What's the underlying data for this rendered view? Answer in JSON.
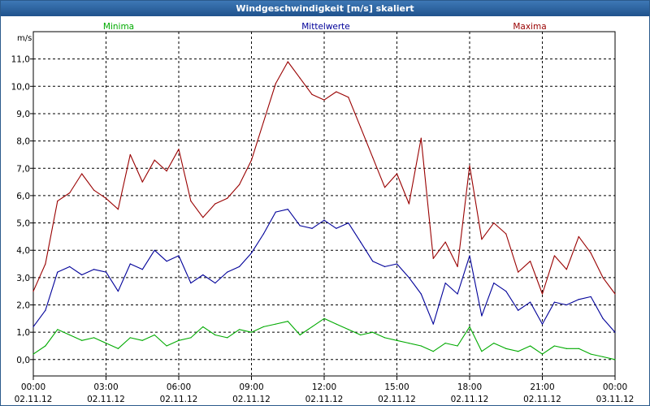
{
  "window": {
    "title": "Windgeschwindigkeit [m/s] skaliert"
  },
  "colors": {
    "min": "#00aa00",
    "mean": "#000099",
    "max": "#990000",
    "grid": "#000000"
  },
  "chart_data": {
    "type": "line",
    "title": "Windgeschwindigkeit [m/s] skaliert",
    "ylabel": "m/s",
    "xlabel": "",
    "ylim": [
      -0.6,
      12.0
    ],
    "xlim": [
      0,
      24
    ],
    "grid": true,
    "legend": [
      "Minima",
      "Mittelwerte",
      "Maxima"
    ],
    "yticks": [
      0,
      1,
      2,
      3,
      4,
      5,
      6,
      7,
      8,
      9,
      10,
      11
    ],
    "ytick_labels": [
      "0,0",
      "1,0",
      "2,0",
      "3,0",
      "4,0",
      "5,0",
      "6,0",
      "7,0",
      "8,0",
      "9,0",
      "10,0",
      "11,0"
    ],
    "xticks": [
      0,
      3,
      6,
      9,
      12,
      15,
      18,
      21,
      24
    ],
    "xtick_times": [
      "00:00",
      "03:00",
      "06:00",
      "09:00",
      "12:00",
      "15:00",
      "18:00",
      "21:00",
      "00:00"
    ],
    "xtick_dates": [
      "02.11.12",
      "02.11.12",
      "02.11.12",
      "02.11.12",
      "02.11.12",
      "02.11.12",
      "02.11.12",
      "02.11.12",
      "03.11.12"
    ],
    "x": [
      0.0,
      0.5,
      1.0,
      1.5,
      2.0,
      2.5,
      3.0,
      3.5,
      4.0,
      4.5,
      5.0,
      5.5,
      6.0,
      6.5,
      7.0,
      7.5,
      8.0,
      8.5,
      9.0,
      9.5,
      10.0,
      10.5,
      11.0,
      11.5,
      12.0,
      12.5,
      13.0,
      13.5,
      14.0,
      14.5,
      15.0,
      15.5,
      16.0,
      16.5,
      17.0,
      17.5,
      18.0,
      18.5,
      19.0,
      19.5,
      20.0,
      20.5,
      21.0,
      21.5,
      22.0,
      22.5,
      23.0,
      23.5,
      24.0
    ],
    "series": [
      {
        "name": "Maxima",
        "color": "#990000",
        "values": [
          2.5,
          3.5,
          5.8,
          6.1,
          6.8,
          6.2,
          5.9,
          5.5,
          7.5,
          6.5,
          7.3,
          6.9,
          7.7,
          5.8,
          5.2,
          5.7,
          5.9,
          6.4,
          7.3,
          8.7,
          10.1,
          10.9,
          10.3,
          9.7,
          9.5,
          9.8,
          9.6,
          8.5,
          7.4,
          6.3,
          6.8,
          5.7,
          8.1,
          3.7,
          4.3,
          3.4,
          7.1,
          4.4,
          5.0,
          4.6,
          3.2,
          3.6,
          2.4,
          3.8,
          3.3,
          4.5,
          3.9,
          3.0,
          2.4
        ]
      },
      {
        "name": "Mittelwerte",
        "color": "#000099",
        "values": [
          1.2,
          1.8,
          3.2,
          3.4,
          3.1,
          3.3,
          3.2,
          2.5,
          3.5,
          3.3,
          4.0,
          3.6,
          3.8,
          2.8,
          3.1,
          2.8,
          3.2,
          3.4,
          3.9,
          4.6,
          5.4,
          5.5,
          4.9,
          4.8,
          5.1,
          4.8,
          5.0,
          4.3,
          3.6,
          3.4,
          3.5,
          3.0,
          2.4,
          1.3,
          2.8,
          2.4,
          3.8,
          1.6,
          2.8,
          2.5,
          1.8,
          2.1,
          1.3,
          2.1,
          2.0,
          2.2,
          2.3,
          1.5,
          1.0
        ]
      },
      {
        "name": "Minima",
        "color": "#00aa00",
        "values": [
          0.2,
          0.5,
          1.1,
          0.9,
          0.7,
          0.8,
          0.6,
          0.4,
          0.8,
          0.7,
          0.9,
          0.5,
          0.7,
          0.8,
          1.2,
          0.9,
          0.8,
          1.1,
          1.0,
          1.2,
          1.3,
          1.4,
          0.9,
          1.2,
          1.5,
          1.3,
          1.1,
          0.9,
          1.0,
          0.8,
          0.7,
          0.6,
          0.5,
          0.3,
          0.6,
          0.5,
          1.2,
          0.3,
          0.6,
          0.4,
          0.3,
          0.5,
          0.2,
          0.5,
          0.4,
          0.4,
          0.2,
          0.1,
          0.0
        ]
      }
    ]
  }
}
